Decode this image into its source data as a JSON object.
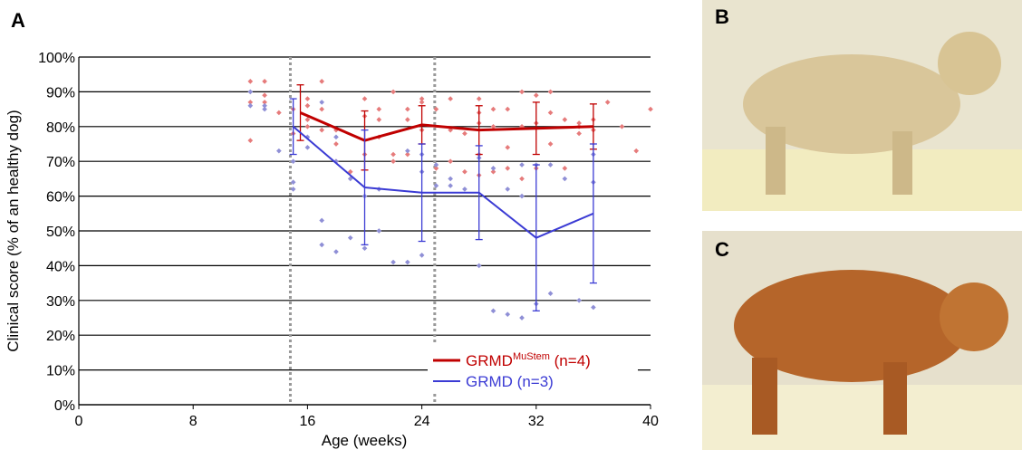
{
  "chart_data": {
    "type": "line",
    "panel_label": "A",
    "xlabel": "Age (weeks)",
    "ylabel": "Clinical score (% of an healthy dog)",
    "xlim": [
      0,
      40
    ],
    "xticks": [
      0,
      8,
      16,
      24,
      32,
      40
    ],
    "ylim": [
      0,
      100
    ],
    "yticks": [
      {
        "value": 0,
        "label": "0%"
      },
      {
        "value": 10,
        "label": "10%"
      },
      {
        "value": 20,
        "label": "20%"
      },
      {
        "value": 30,
        "label": "30%"
      },
      {
        "value": 40,
        "label": "40%"
      },
      {
        "value": 50,
        "label": "50%"
      },
      {
        "value": 60,
        "label": "60%"
      },
      {
        "value": 70,
        "label": "70%"
      },
      {
        "value": 80,
        "label": "80%"
      },
      {
        "value": 90,
        "label": "90%"
      },
      {
        "value": 100,
        "label": "100%"
      }
    ],
    "grid": true,
    "vlines": [
      14.8,
      24.9
    ],
    "series": [
      {
        "name": "GRMD",
        "name_superscript": "MuStem",
        "name_note": " (n=4)",
        "color": "#c00000",
        "x": [
          15.5,
          20,
          24,
          28,
          32,
          36
        ],
        "values": [
          84,
          76,
          80.5,
          79,
          79.5,
          80
        ],
        "errors": [
          8,
          8.5,
          5.5,
          7,
          7.5,
          6.5
        ]
      },
      {
        "name": "GRMD",
        "name_note": " (n=3)",
        "color": "#3b3bd4",
        "x": [
          15,
          20,
          24,
          28,
          32,
          36
        ],
        "values": [
          80,
          62.5,
          61,
          61,
          48,
          55
        ],
        "errors": [
          8,
          16.5,
          14,
          13.5,
          21,
          20
        ]
      }
    ],
    "scatter": [
      {
        "color": "#e67b7b",
        "x": [
          12,
          12,
          12,
          13,
          13,
          13,
          14,
          15,
          15,
          16,
          16,
          16,
          16,
          17,
          17,
          17,
          18,
          18,
          18,
          19,
          20,
          20,
          20,
          21,
          21,
          21,
          22,
          22,
          22,
          23,
          23,
          23,
          24,
          24,
          24,
          25,
          25,
          26,
          26,
          26,
          27,
          27,
          28,
          28,
          28,
          28,
          28,
          29,
          29,
          29,
          30,
          30,
          30,
          31,
          31,
          31,
          32,
          32,
          32,
          33,
          33,
          33,
          34,
          34,
          35,
          35,
          35,
          36,
          36,
          37,
          38,
          39,
          40
        ],
        "values": [
          87,
          93,
          76,
          89,
          93,
          87,
          84,
          78,
          85,
          88,
          82,
          80,
          86,
          93,
          85,
          79,
          79,
          75,
          70,
          67,
          88,
          83,
          72,
          85,
          82,
          77,
          90,
          70,
          72,
          85,
          82,
          72,
          88,
          87,
          79,
          85,
          68,
          88,
          79,
          70,
          78,
          67,
          88,
          84,
          81,
          72,
          66,
          85,
          80,
          67,
          85,
          74,
          68,
          90,
          80,
          65,
          89,
          81,
          68,
          90,
          84,
          75,
          82,
          68,
          81,
          80,
          78,
          82,
          79,
          87,
          80,
          73,
          85
        ]
      },
      {
        "color": "#8f8fd6",
        "x": [
          12,
          12,
          13,
          13,
          14,
          15,
          15,
          15,
          16,
          16,
          17,
          17,
          17,
          18,
          18,
          18,
          19,
          19,
          20,
          20,
          21,
          21,
          22,
          23,
          23,
          24,
          24,
          24,
          25,
          25,
          26,
          26,
          27,
          28,
          28,
          29,
          29,
          30,
          30,
          31,
          31,
          31,
          32,
          32,
          33,
          33,
          34,
          35,
          36,
          36,
          36
        ],
        "values": [
          90,
          86,
          85,
          86,
          73,
          64,
          70,
          62,
          77,
          74,
          87,
          46,
          53,
          77,
          70,
          44,
          48,
          65,
          45,
          60,
          50,
          62,
          41,
          41,
          73,
          43,
          72,
          67,
          69,
          63,
          65,
          63,
          62,
          40,
          71,
          27,
          68,
          26,
          62,
          25,
          60,
          69,
          29,
          69,
          32,
          69,
          65,
          30,
          28,
          64,
          72
        ]
      }
    ]
  },
  "panels": [
    {
      "label": "B"
    },
    {
      "label": "C"
    }
  ]
}
